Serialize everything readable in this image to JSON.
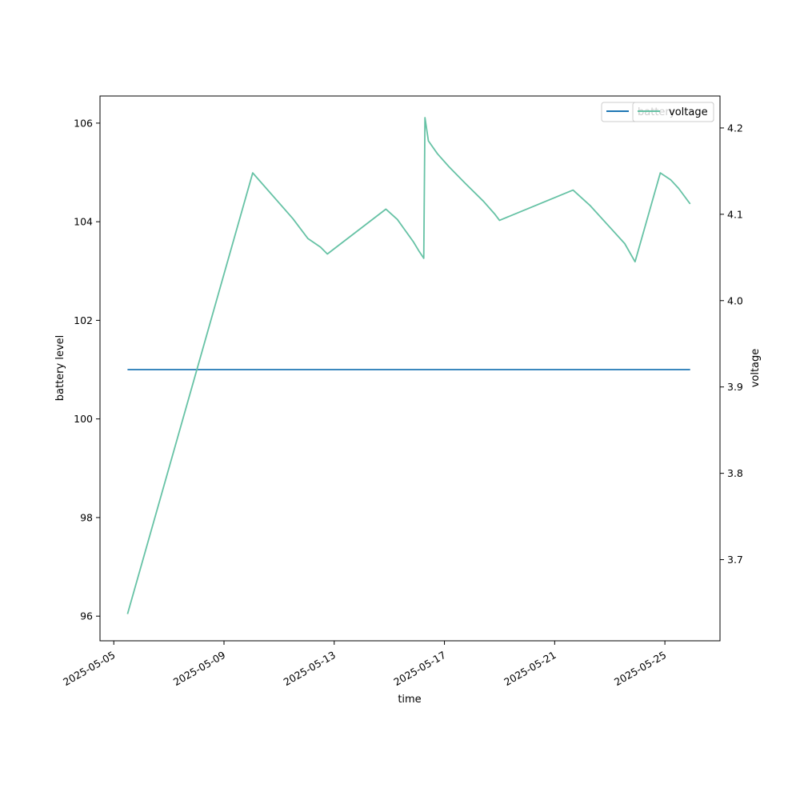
{
  "chart_data": {
    "type": "line",
    "xlabel": "time",
    "ylabel_left": "battery level",
    "ylabel_right": "voltage",
    "x_ticks": [
      "2025-05-05",
      "2025-05-09",
      "2025-05-13",
      "2025-05-17",
      "2025-05-21",
      "2025-05-25"
    ],
    "x_range": [
      "2025-05-04T12:00",
      "2025-05-27T00:00"
    ],
    "y_left_ticks": [
      96,
      98,
      100,
      102,
      104,
      106
    ],
    "y_left_range": [
      95.5,
      106.55
    ],
    "y_right_ticks": [
      3.7,
      3.8,
      3.9,
      4.0,
      4.1,
      4.2
    ],
    "y_right_range": [
      3.606,
      4.237
    ],
    "grid": false,
    "legend_placement": "top-right",
    "series": [
      {
        "name": "battery",
        "axis": "left",
        "color": "#1f77b4",
        "points": [
          [
            "2025-05-05T12:00",
            101
          ],
          [
            "2025-05-25T22:00",
            101
          ]
        ]
      },
      {
        "name": "voltage",
        "axis": "right",
        "color": "#66c2a5",
        "points": [
          [
            "2025-05-05T12:00",
            3.637
          ],
          [
            "2025-05-10T01:00",
            4.148
          ],
          [
            "2025-05-11T12:00",
            4.095
          ],
          [
            "2025-05-12T01:00",
            4.072
          ],
          [
            "2025-05-12T12:00",
            4.062
          ],
          [
            "2025-05-12T18:00",
            4.054
          ],
          [
            "2025-05-14T21:00",
            4.106
          ],
          [
            "2025-05-15T07:00",
            4.094
          ],
          [
            "2025-05-15T21:00",
            4.068
          ],
          [
            "2025-05-16T02:00",
            4.057
          ],
          [
            "2025-05-16T05:00",
            4.051
          ],
          [
            "2025-05-16T06:00",
            4.049
          ],
          [
            "2025-05-16T07:00",
            4.212
          ],
          [
            "2025-05-16T10:00",
            4.185
          ],
          [
            "2025-05-16T18:00",
            4.17
          ],
          [
            "2025-05-17T04:00",
            4.155
          ],
          [
            "2025-05-17T18:00",
            4.136
          ],
          [
            "2025-05-18T10:00",
            4.115
          ],
          [
            "2025-05-18T20:00",
            4.1
          ],
          [
            "2025-05-19T00:00",
            4.093
          ],
          [
            "2025-05-21T16:00",
            4.128
          ],
          [
            "2025-05-22T07:00",
            4.11
          ],
          [
            "2025-05-23T13:00",
            4.066
          ],
          [
            "2025-05-23T22:00",
            4.045
          ],
          [
            "2025-05-24T20:00",
            4.148
          ],
          [
            "2025-05-25T05:00",
            4.14
          ],
          [
            "2025-05-25T12:00",
            4.13
          ],
          [
            "2025-05-25T22:00",
            4.112
          ]
        ]
      }
    ]
  }
}
